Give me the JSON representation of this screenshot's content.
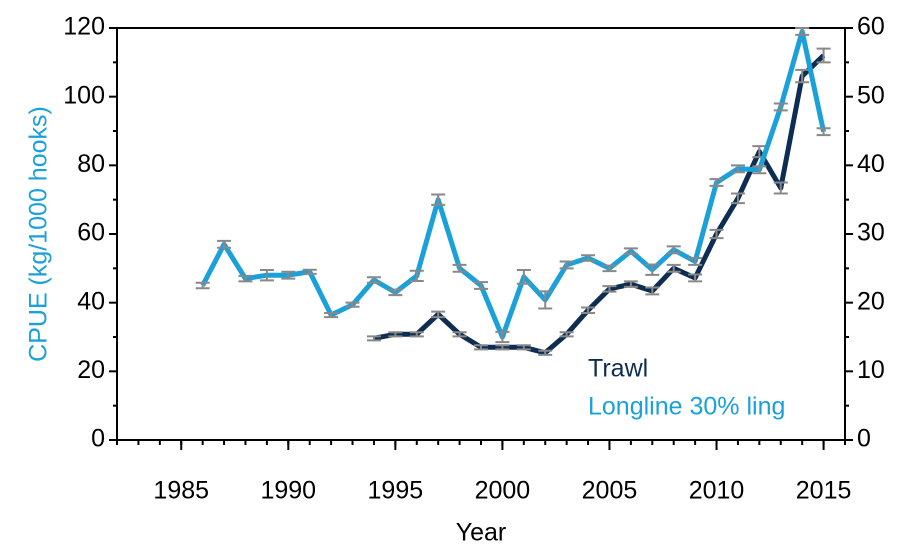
{
  "chart_data": {
    "type": "line",
    "xlabel": "Year",
    "ylabel": "CPUE (kg/1000 hooks)",
    "x": [
      1986,
      1987,
      1988,
      1989,
      1990,
      1991,
      1992,
      1993,
      1994,
      1995,
      1996,
      1997,
      1998,
      1999,
      2000,
      2001,
      2002,
      2003,
      2004,
      2005,
      2006,
      2007,
      2008,
      2009,
      2010,
      2011,
      2012,
      2013,
      2014,
      2015
    ],
    "series": [
      {
        "name": "Trawl",
        "color": "#0d2d52",
        "axis": "y2",
        "values": [
          null,
          null,
          null,
          null,
          null,
          null,
          null,
          null,
          14.8,
          15.4,
          15.4,
          18.3,
          15.4,
          13.5,
          13.5,
          13.5,
          12.7,
          15.4,
          18.9,
          22,
          22.7,
          21.7,
          25,
          23.6,
          30,
          35.2,
          42,
          36.7,
          53,
          56
        ],
        "errors": [
          null,
          null,
          null,
          null,
          null,
          null,
          null,
          null,
          0.3,
          0.3,
          0.3,
          0.4,
          0.3,
          0.3,
          0.3,
          0.3,
          0.3,
          0.3,
          0.4,
          0.4,
          0.4,
          0.5,
          0.5,
          0.5,
          0.6,
          0.7,
          0.8,
          0.8,
          0.9,
          1
        ]
      },
      {
        "name": "Longline 30% ling",
        "color": "#1ba1d9",
        "values": [
          45,
          57,
          47,
          48,
          48,
          49,
          36.4,
          39.4,
          46.6,
          43,
          47.8,
          70,
          50,
          45,
          30,
          47.5,
          40.8,
          51,
          53,
          50,
          55,
          49.6,
          55.4,
          52,
          75,
          79,
          78.7,
          97,
          119,
          89.8
        ],
        "errors": [
          0.8,
          1,
          0.8,
          1.5,
          1,
          0.6,
          0.6,
          0.6,
          0.8,
          0.8,
          1.5,
          1.5,
          1,
          1,
          1.5,
          2,
          2.5,
          1,
          0.8,
          0.8,
          0.8,
          1.5,
          1,
          1,
          1,
          1,
          1,
          1,
          1,
          1
        ]
      }
    ],
    "xlim": [
      1982,
      2016
    ],
    "xticks": [
      1985,
      1990,
      1995,
      2000,
      2005,
      2010,
      2015
    ],
    "ylim": [
      0,
      120
    ],
    "yticks": [
      0,
      20,
      40,
      60,
      80,
      100,
      120
    ],
    "y2lim": [
      0,
      60
    ],
    "y2ticks": [
      0,
      10,
      20,
      30,
      40,
      50,
      60
    ],
    "ylabel_color": "#1ba1d9",
    "errorbar_color": "#888888",
    "legend": "lower right"
  }
}
